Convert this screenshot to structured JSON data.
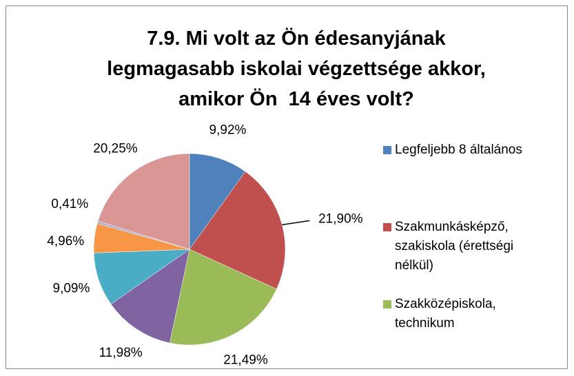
{
  "chart_data": {
    "type": "pie",
    "title": "7.9. Mi volt az Ön édesanyjának legmagasabb iskolai végzettsége akkor, amikor Ön  14 éves volt?",
    "categories": [
      "Legfeljebb 8 általános",
      "Szakmunkásképző, szakiskola (érettségi nélkül)",
      "Szakközépiskola, technikum",
      null,
      null,
      null,
      null,
      null
    ],
    "values": [
      9.92,
      21.9,
      21.49,
      11.98,
      9.09,
      4.96,
      0.41,
      20.25
    ],
    "value_labels": [
      "9,92%",
      "21,90%",
      "21,49%",
      "11,98%",
      "9,09%",
      "4,96%",
      "0,41%",
      "20,25%"
    ],
    "colors": [
      "#4f81bd",
      "#c0504d",
      "#9bbb59",
      "#8064a2",
      "#4bacc6",
      "#f79646",
      "#a5b0d0",
      "#d99694"
    ],
    "legend": "right"
  }
}
